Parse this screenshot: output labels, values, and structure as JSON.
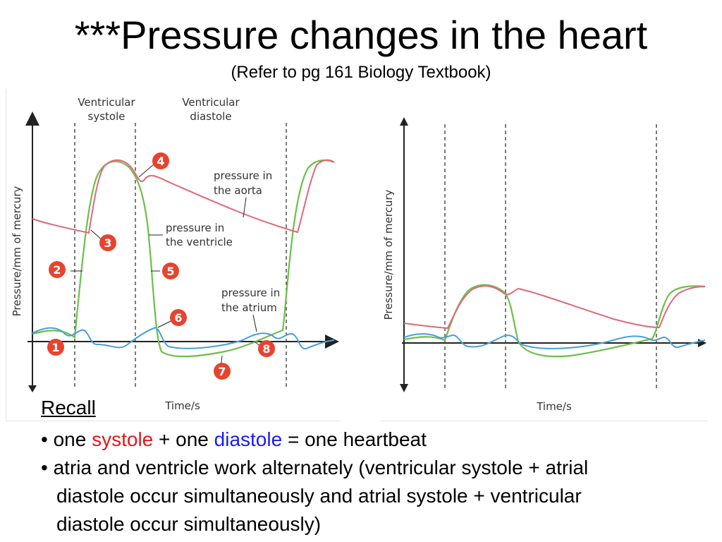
{
  "title": "***Pressure changes in the heart",
  "subtitle": "(Refer to pg 161 Biology Textbook)",
  "colors": {
    "aorta": "#e0687a",
    "ventricle": "#6cbf4a",
    "atrium": "#4a9fdc",
    "marker": "#e8432e",
    "systole_word": "#e8141c",
    "diastole_word": "#1a1aff"
  },
  "left_diagram": {
    "phase_labels": [
      {
        "line1": "Ventricular",
        "line2": "systole"
      },
      {
        "line1": "Ventricular",
        "line2": "diastole"
      }
    ],
    "ylabel": "Pressure/mm of mercury",
    "xlabel": "Time/s",
    "curve_labels": {
      "aorta": [
        "pressure in",
        "the aorta"
      ],
      "ventricle": [
        "pressure in",
        "the ventricle"
      ],
      "atrium": [
        "pressure in",
        "the atrium"
      ]
    },
    "markers": [
      "1",
      "2",
      "3",
      "4",
      "5",
      "6",
      "7",
      "8"
    ]
  },
  "right_diagram": {
    "ylabel": "Pressure/mm of mercury",
    "xlabel": "Time/s"
  },
  "recall": {
    "heading": "Recall",
    "bullet1": {
      "bullet": "•",
      "p1": "one ",
      "systole": "systole",
      "p2": " + one ",
      "diastole": "diastole",
      "p3": " = one heartbeat"
    },
    "bullet2": {
      "bullet": "•",
      "line1": "atria and ventricle work alternately (ventricular systole + atrial",
      "line2": "diastole occur simultaneously and atrial systole + ventricular",
      "line3": "diastole occur simultaneously)"
    }
  }
}
